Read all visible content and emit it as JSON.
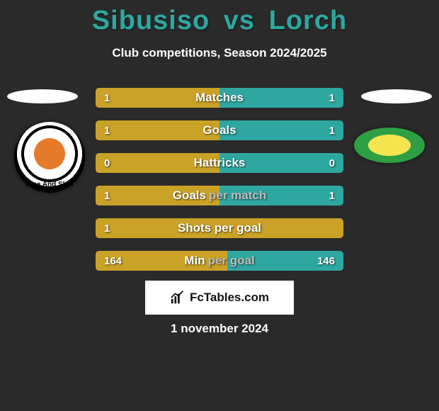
{
  "title": {
    "player1": "Sibusiso",
    "vs": "vs",
    "player2": "Lorch",
    "color": "#2fa7a1"
  },
  "subtitle": "Club competitions, Season 2024/2025",
  "colors": {
    "left_bar": "#c9a227",
    "right_bar": "#2fa7a1",
    "bg": "#2a2a2a",
    "label_grey": "#bdbdbd"
  },
  "club_left_text": "Rise And Shin",
  "bars": [
    {
      "label": "Matches",
      "label_grey": "",
      "left_val": "1",
      "right_val": "1",
      "left_pct": 50,
      "right_pct": 50
    },
    {
      "label": "Goals",
      "label_grey": "",
      "left_val": "1",
      "right_val": "1",
      "left_pct": 50,
      "right_pct": 50
    },
    {
      "label": "Hattricks",
      "label_grey": "",
      "left_val": "0",
      "right_val": "0",
      "left_pct": 50,
      "right_pct": 50
    },
    {
      "label": "Goals",
      "label_grey": "per match",
      "left_val": "1",
      "right_val": "1",
      "left_pct": 50,
      "right_pct": 50
    },
    {
      "label": "Shots per goal",
      "label_grey": "",
      "left_val": "1",
      "right_val": "",
      "left_pct": 100,
      "right_pct": 0
    },
    {
      "label": "Min",
      "label_grey": "per goal",
      "left_val": "164",
      "right_val": "146",
      "left_pct": 53,
      "right_pct": 47
    }
  ],
  "footer_brand": "FcTables.com",
  "date": "1 november 2024"
}
